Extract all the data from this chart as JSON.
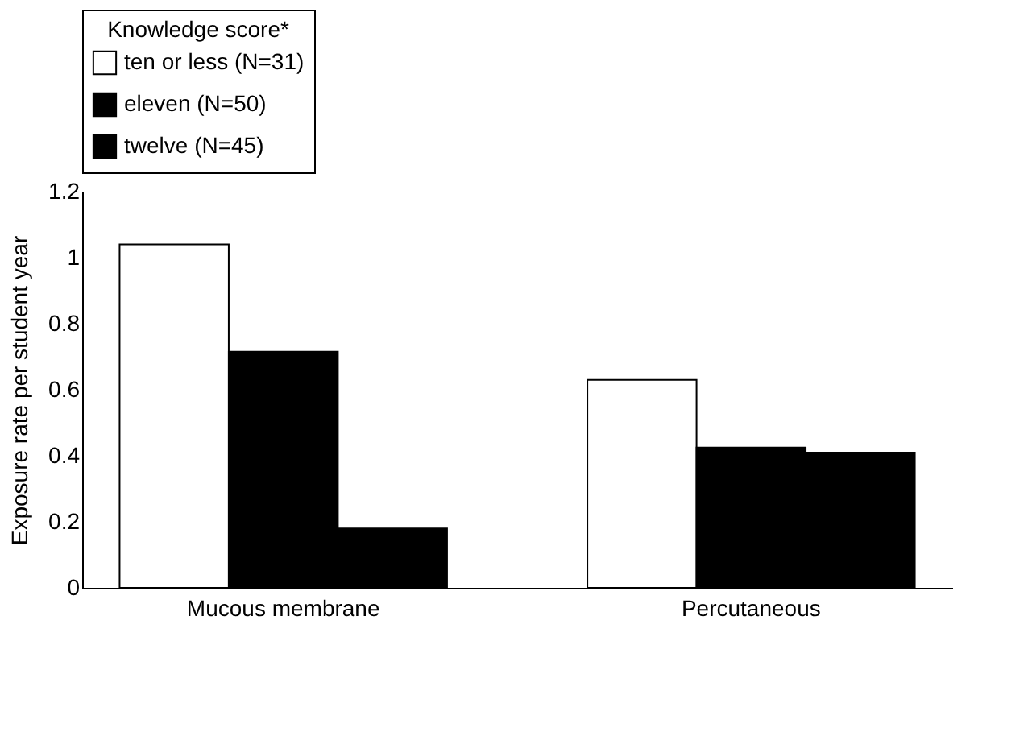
{
  "chart_data": {
    "type": "bar",
    "ylabel": "Exposure rate per student year",
    "legend_title": "Knowledge score*",
    "categories": [
      "Mucous membrane",
      "Percutaneous"
    ],
    "series": [
      {
        "name": "ten or less (N=31)",
        "color": "#ffffff",
        "values": [
          1.04,
          0.63
        ]
      },
      {
        "name": "eleven (N=50)",
        "color": "#000000",
        "values": [
          0.715,
          0.425
        ]
      },
      {
        "name": "twelve (N=45)",
        "color": "#000000",
        "values": [
          0.18,
          0.41
        ]
      }
    ],
    "ylim": [
      0,
      1.2
    ],
    "yticks": [
      0,
      0.2,
      0.4,
      0.6,
      0.8,
      1,
      1.2
    ],
    "grid": false,
    "legend": "top"
  }
}
